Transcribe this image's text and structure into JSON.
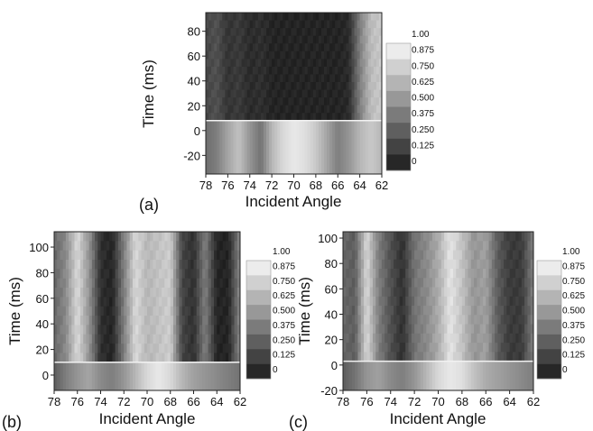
{
  "colorbar": {
    "labels": [
      "1.00",
      "0.875",
      "0.750",
      "0.625",
      "0.500",
      "0.375",
      "0.250",
      "0.125",
      "0"
    ],
    "levels": [
      1.0,
      0.875,
      0.75,
      0.625,
      0.5,
      0.375,
      0.25,
      0.125,
      0
    ]
  },
  "chart_data": [
    {
      "type": "heatmap",
      "panel_label": "(a)",
      "xlabel": "Incident Angle",
      "ylabel": "Time (ms)",
      "xlim": [
        78,
        62
      ],
      "ylim": [
        -35,
        95
      ],
      "xticks": [
        "78",
        "76",
        "74",
        "72",
        "70",
        "68",
        "66",
        "64",
        "62"
      ],
      "yticks": [
        "80",
        "60",
        "40",
        "20",
        "0",
        "-20"
      ],
      "ytick_values": [
        80,
        60,
        40,
        20,
        0,
        -20
      ],
      "transition_time": 8,
      "before_profile": {
        "angles": [
          78,
          77,
          76,
          75,
          74,
          73,
          72,
          71,
          70,
          69,
          68,
          67,
          66,
          65,
          64,
          63,
          62
        ],
        "values": [
          0.38,
          0.45,
          0.62,
          0.75,
          0.55,
          0.4,
          0.7,
          0.85,
          0.92,
          0.88,
          0.78,
          0.62,
          0.45,
          0.55,
          0.7,
          0.78,
          0.7
        ]
      },
      "after_profile": {
        "angles": [
          78,
          77,
          76,
          75,
          74,
          73,
          72,
          71,
          70,
          69,
          68,
          67,
          66,
          65,
          64,
          63,
          62
        ],
        "values": [
          0.2,
          0.25,
          0.12,
          0.15,
          0.08,
          0.1,
          0.05,
          0.05,
          0.05,
          0.05,
          0.05,
          0.05,
          0.05,
          0.08,
          0.45,
          0.72,
          0.78
        ]
      }
    },
    {
      "type": "heatmap",
      "panel_label": "(b)",
      "xlabel": "Incident Angle",
      "ylabel": "Time (ms)",
      "xlim": [
        78,
        62
      ],
      "ylim": [
        -12,
        112
      ],
      "xticks": [
        "78",
        "76",
        "74",
        "72",
        "70",
        "68",
        "66",
        "64",
        "62"
      ],
      "yticks": [
        "100",
        "80",
        "60",
        "40",
        "20",
        "0"
      ],
      "ytick_values": [
        100,
        80,
        60,
        40,
        20,
        0
      ],
      "transition_time": 10,
      "before_profile": {
        "angles": [
          78,
          77,
          76,
          75,
          74,
          73,
          72,
          71,
          70,
          69,
          68,
          67,
          66,
          65,
          64,
          63,
          62
        ],
        "values": [
          0.3,
          0.45,
          0.55,
          0.62,
          0.5,
          0.45,
          0.55,
          0.7,
          0.85,
          0.92,
          0.85,
          0.7,
          0.6,
          0.55,
          0.5,
          0.45,
          0.4
        ]
      },
      "after_profile": {
        "angles": [
          78,
          77,
          76,
          75,
          74,
          73,
          72,
          71,
          70,
          69,
          68,
          67,
          66,
          65,
          64,
          63,
          62
        ],
        "values": [
          0.35,
          0.5,
          0.85,
          0.55,
          0.1,
          0.05,
          0.45,
          0.85,
          0.7,
          0.75,
          0.8,
          0.2,
          0.1,
          0.45,
          0.05,
          0.05,
          0.5
        ]
      }
    },
    {
      "type": "heatmap",
      "panel_label": "(c)",
      "xlabel": "Incident Angle",
      "ylabel": "Time (ms)",
      "xlim": [
        78,
        62
      ],
      "ylim": [
        -20,
        105
      ],
      "xticks": [
        "78",
        "76",
        "74",
        "72",
        "70",
        "68",
        "66",
        "64",
        "62"
      ],
      "yticks": [
        "100",
        "80",
        "60",
        "40",
        "20",
        "0",
        "-20"
      ],
      "ytick_values": [
        100,
        80,
        60,
        40,
        20,
        0,
        -20
      ],
      "transition_time": 3,
      "before_profile": {
        "angles": [
          78,
          77,
          76,
          75,
          74,
          73,
          72,
          71,
          70,
          69,
          68,
          67,
          66,
          65,
          64,
          63,
          62
        ],
        "values": [
          0.3,
          0.4,
          0.55,
          0.6,
          0.5,
          0.45,
          0.55,
          0.7,
          0.85,
          0.92,
          0.88,
          0.75,
          0.65,
          0.6,
          0.55,
          0.5,
          0.45
        ]
      },
      "after_profile": {
        "angles": [
          78,
          77,
          76,
          75,
          74,
          73,
          72,
          71,
          70,
          69,
          68,
          67,
          66,
          65,
          64,
          63,
          62
        ],
        "values": [
          0.35,
          0.3,
          0.85,
          0.45,
          0.25,
          0.1,
          0.4,
          0.5,
          0.65,
          0.9,
          0.75,
          0.55,
          0.6,
          0.3,
          0.15,
          0.15,
          0.45
        ]
      }
    }
  ]
}
